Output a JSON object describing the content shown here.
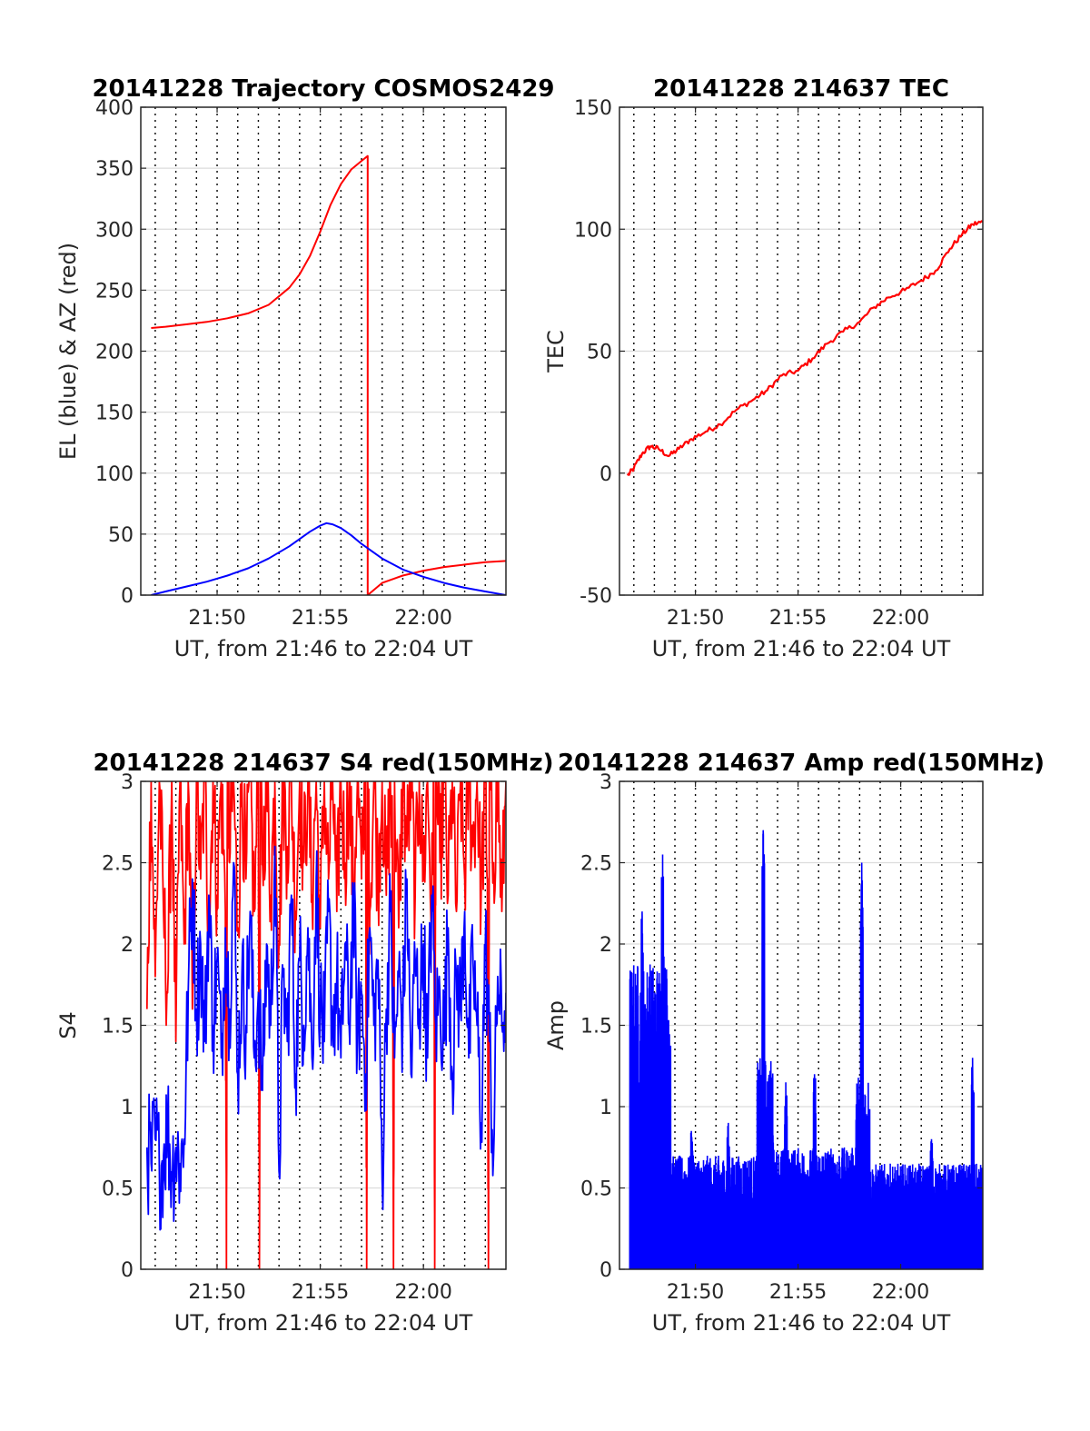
{
  "chart_data": [
    {
      "type": "line",
      "title": "20141228 Trajectory COSMOS2429",
      "xlabel": "UT, from 21:46 to 22:04 UT",
      "ylabel": "EL (blue) & AZ (red)",
      "xlim_minutes": [
        1306.3,
        1324.0
      ],
      "ylim": [
        0,
        400
      ],
      "yticks": [
        0,
        50,
        100,
        150,
        200,
        250,
        300,
        350,
        400
      ],
      "xticks": [
        {
          "value": 1310,
          "label": "21:50"
        },
        {
          "value": 1315,
          "label": "21:55"
        },
        {
          "value": 1320,
          "label": "22:00"
        }
      ],
      "grid": true,
      "series": [
        {
          "color": "#ff0000",
          "x": [
            1306.8,
            1307.5,
            1308.5,
            1309.5,
            1310.5,
            1311.5,
            1312.5,
            1313.5,
            1314.0,
            1314.5,
            1315.0,
            1315.5,
            1316.0,
            1316.5,
            1317.0,
            1317.3,
            1317.3,
            1318.0,
            1319.0,
            1320.0,
            1321.0,
            1322.0,
            1323.0,
            1324.0
          ],
          "y": [
            219,
            220,
            222,
            224,
            227,
            231,
            238,
            252,
            263,
            278,
            298,
            320,
            337,
            349,
            356,
            360,
            0,
            10,
            16,
            20,
            23,
            25,
            27,
            28
          ]
        },
        {
          "color": "#0000ff",
          "x": [
            1306.8,
            1307.5,
            1308.5,
            1309.5,
            1310.5,
            1311.5,
            1312.5,
            1313.5,
            1314.5,
            1315.0,
            1315.3,
            1315.6,
            1316.0,
            1316.5,
            1317.0,
            1318.0,
            1319.0,
            1320.0,
            1321.0,
            1322.0,
            1323.0,
            1324.0
          ],
          "y": [
            0,
            3,
            7,
            11,
            16,
            22,
            30,
            40,
            52,
            57,
            59,
            58,
            55,
            49,
            42,
            30,
            21,
            15,
            10,
            6,
            3,
            0
          ]
        }
      ]
    },
    {
      "type": "line",
      "title": "20141228 214637 TEC",
      "xlabel": "UT, from 21:46 to 22:04 UT",
      "ylabel": "TEC",
      "xlim_minutes": [
        1306.3,
        1324.0
      ],
      "ylim": [
        -50,
        150
      ],
      "yticks": [
        -50,
        0,
        50,
        100,
        150
      ],
      "xticks": [
        {
          "value": 1310,
          "label": "21:50"
        },
        {
          "value": 1315,
          "label": "21:55"
        },
        {
          "value": 1320,
          "label": "22:00"
        }
      ],
      "grid": true,
      "series": [
        {
          "color": "#ff0000",
          "x": [
            1306.7,
            1307.0,
            1307.4,
            1307.8,
            1308.2,
            1308.7,
            1309.2,
            1309.8,
            1310.5,
            1311.2,
            1312.0,
            1312.8,
            1313.5,
            1314.2,
            1315.0,
            1315.7,
            1316.4,
            1317.2,
            1318.0,
            1318.7,
            1319.4,
            1320.2,
            1321.0,
            1321.7,
            1322.4,
            1323.0,
            1323.5,
            1324.0
          ],
          "y": [
            -1,
            2,
            8,
            11,
            10,
            7,
            10,
            14,
            17,
            20,
            26,
            30,
            34,
            40,
            42,
            47,
            53,
            58,
            62,
            68,
            72,
            75,
            79,
            83,
            92,
            98,
            102,
            103
          ]
        }
      ]
    },
    {
      "type": "line",
      "title": "20141228 214637 S4 red(150MHz)",
      "xlabel": "UT, from 21:46 to 22:04 UT",
      "ylabel": "S4",
      "xlim_minutes": [
        1306.3,
        1324.0
      ],
      "ylim": [
        0,
        3
      ],
      "yticks": [
        0,
        0.5,
        1,
        1.5,
        2,
        2.5,
        3
      ],
      "xticks": [
        {
          "value": 1310,
          "label": "21:50"
        },
        {
          "value": 1315,
          "label": "21:55"
        },
        {
          "value": 1320,
          "label": "22:00"
        }
      ],
      "grid": true,
      "series": [
        {
          "color": "#ff0000",
          "x": [
            1306.6,
            1306.8,
            1307.0,
            1307.2,
            1307.4,
            1307.6,
            1307.8,
            1308.0,
            1308.2,
            1308.4,
            1308.6,
            1308.8,
            1309.0,
            1309.2,
            1309.4,
            1309.6,
            1309.8,
            1310.0,
            1310.2,
            1310.4,
            1310.45,
            1310.5,
            1310.6,
            1310.8,
            1311.0,
            1311.2,
            1311.4,
            1311.6,
            1311.8,
            1312.0,
            1312.05,
            1312.1,
            1312.2,
            1312.4,
            1312.6,
            1312.8,
            1313.0,
            1313.2,
            1313.4,
            1313.6,
            1313.8,
            1314.0,
            1314.2,
            1314.4,
            1314.6,
            1314.8,
            1315.0,
            1315.2,
            1315.4,
            1315.6,
            1315.8,
            1316.0,
            1316.2,
            1316.4,
            1316.6,
            1316.8,
            1317.0,
            1317.2,
            1317.25,
            1317.3,
            1317.4,
            1317.6,
            1317.8,
            1318.0,
            1318.2,
            1318.4,
            1318.5,
            1318.55,
            1318.6,
            1318.8,
            1319.0,
            1319.2,
            1319.4,
            1319.6,
            1319.8,
            1320.0,
            1320.2,
            1320.4,
            1320.5,
            1320.55,
            1320.6,
            1320.8,
            1321.0,
            1321.2,
            1321.4,
            1321.6,
            1321.8,
            1322.0,
            1322.2,
            1322.4,
            1322.6,
            1322.8,
            1323.0,
            1323.1,
            1323.15,
            1323.2,
            1323.4,
            1323.6,
            1323.8,
            1324.0
          ],
          "y": [
            1.6,
            3,
            1.8,
            3,
            2.2,
            1.7,
            3,
            1.4,
            3,
            2.0,
            3,
            1.6,
            3,
            2.4,
            3,
            2.1,
            3,
            2.3,
            3,
            2.2,
            0,
            3,
            2.5,
            3,
            2.1,
            3,
            2.4,
            3,
            2.2,
            3,
            0,
            3,
            2.5,
            3,
            2.3,
            3,
            2.0,
            3,
            2.6,
            3,
            2.2,
            3,
            2.5,
            3,
            2.3,
            3,
            2.1,
            3,
            2.4,
            3,
            2.2,
            3,
            2.5,
            3,
            2.3,
            3,
            2.4,
            3,
            0,
            3,
            2.2,
            3,
            2.4,
            3,
            2.3,
            3,
            2.5,
            0,
            3,
            2.1,
            3,
            2.6,
            3,
            2.3,
            3,
            2.4,
            3,
            2.2,
            3,
            0,
            3,
            2.5,
            3,
            2.3,
            3,
            2.2,
            3,
            2.4,
            3,
            2.6,
            3,
            2.3,
            3,
            2.4,
            0,
            3,
            2.5,
            3,
            2.2,
            3
          ]
        },
        {
          "color": "#0000ff",
          "x": [
            1306.6,
            1306.8,
            1307.0,
            1307.2,
            1307.4,
            1307.6,
            1307.8,
            1308.0,
            1308.2,
            1308.4,
            1308.6,
            1308.8,
            1309.0,
            1309.2,
            1309.4,
            1309.6,
            1309.8,
            1310.0,
            1310.2,
            1310.4,
            1310.6,
            1310.8,
            1311.0,
            1311.2,
            1311.4,
            1311.6,
            1311.8,
            1312.0,
            1312.2,
            1312.4,
            1312.6,
            1312.8,
            1313.0,
            1313.2,
            1313.4,
            1313.6,
            1313.8,
            1314.0,
            1314.2,
            1314.4,
            1314.6,
            1314.8,
            1315.0,
            1315.2,
            1315.4,
            1315.6,
            1315.8,
            1316.0,
            1316.2,
            1316.4,
            1316.6,
            1316.8,
            1317.0,
            1317.2,
            1317.4,
            1317.6,
            1317.8,
            1318.0,
            1318.2,
            1318.4,
            1318.6,
            1318.8,
            1319.0,
            1319.2,
            1319.4,
            1319.6,
            1319.8,
            1320.0,
            1320.2,
            1320.4,
            1320.6,
            1320.8,
            1321.0,
            1321.2,
            1321.4,
            1321.6,
            1321.8,
            1322.0,
            1322.2,
            1322.4,
            1322.6,
            1322.8,
            1323.0,
            1323.2,
            1323.4,
            1323.6,
            1323.8,
            1324.0
          ],
          "y": [
            0.75,
            0.65,
            0.8,
            0.62,
            0.7,
            0.9,
            0.6,
            0.75,
            0.65,
            0.8,
            1.7,
            2.4,
            1.6,
            2.0,
            1.4,
            2.3,
            1.5,
            1.9,
            1.3,
            2.1,
            1.6,
            2.5,
            1.2,
            1.8,
            1.5,
            2.2,
            1.3,
            1.7,
            1.1,
            2.0,
            1.5,
            2.6,
            0.6,
            1.8,
            1.4,
            2.3,
            1.2,
            1.9,
            1.5,
            2.1,
            1.3,
            2.4,
            1.6,
            1.4,
            2.2,
            1.5,
            1.8,
            1.3,
            2.0,
            1.5,
            2.3,
            1.4,
            1.7,
            1.2,
            2.1,
            1.5,
            1.9,
            0.55,
            1.6,
            2.2,
            1.3,
            1.8,
            1.5,
            2.4,
            1.2,
            1.9,
            1.6,
            2.0,
            1.3,
            2.3,
            1.5,
            1.7,
            1.4,
            2.1,
            1.2,
            1.8,
            1.6,
            2.2,
            1.3,
            1.9,
            1.5,
            0.9,
            2.0,
            1.4,
            0.7,
            1.8,
            1.5,
            1.7
          ]
        }
      ]
    },
    {
      "type": "line",
      "title": "20141228 214637 Amp red(150MHz)",
      "xlabel": "UT, from 21:46 to 22:04 UT",
      "ylabel": "Amp",
      "xlim_minutes": [
        1306.3,
        1324.0
      ],
      "ylim": [
        0,
        3
      ],
      "yticks": [
        0,
        0.5,
        1,
        1.5,
        2,
        2.5,
        3
      ],
      "xticks": [
        {
          "value": 1310,
          "label": "21:50"
        },
        {
          "value": 1315,
          "label": "21:55"
        },
        {
          "value": 1320,
          "label": "22:00"
        }
      ],
      "grid": true,
      "series": [
        {
          "color": "#0000ff",
          "x_range": [
            1306.8,
            1324.0
          ],
          "segments": [
            {
              "x": [
                1306.8,
                1308.8
              ],
              "amp_max": 1.9,
              "spikes": [
                {
                  "x": 1307.4,
                  "y": 2.2
                },
                {
                  "x": 1308.4,
                  "y": 2.55
                }
              ]
            },
            {
              "x": [
                1308.8,
                1313.0
              ],
              "amp_max": 0.7,
              "spikes": [
                {
                  "x": 1309.8,
                  "y": 0.85
                },
                {
                  "x": 1311.6,
                  "y": 0.9
                }
              ]
            },
            {
              "x": [
                1313.0,
                1313.8
              ],
              "amp_max": 1.3,
              "spikes": [
                {
                  "x": 1313.3,
                  "y": 2.7
                }
              ]
            },
            {
              "x": [
                1313.8,
                1317.8
              ],
              "amp_max": 0.75,
              "spikes": [
                {
                  "x": 1314.4,
                  "y": 1.15
                },
                {
                  "x": 1315.8,
                  "y": 1.2
                }
              ]
            },
            {
              "x": [
                1317.8,
                1318.5
              ],
              "amp_max": 1.2,
              "spikes": [
                {
                  "x": 1318.1,
                  "y": 2.5
                }
              ]
            },
            {
              "x": [
                1318.5,
                1324.0
              ],
              "amp_max": 0.65,
              "spikes": [
                {
                  "x": 1321.5,
                  "y": 0.8
                },
                {
                  "x": 1323.5,
                  "y": 1.3
                }
              ]
            }
          ]
        }
      ]
    }
  ]
}
